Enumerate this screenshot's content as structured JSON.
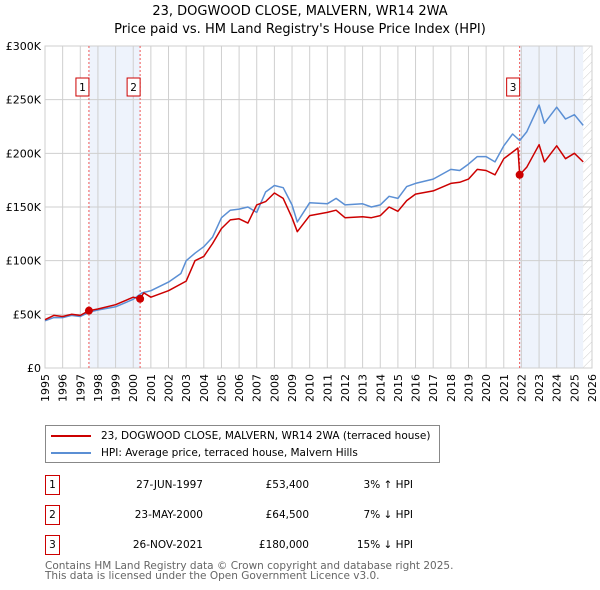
{
  "chart_data": {
    "type": "line",
    "title": "23, DOGWOOD CLOSE, MALVERN, WR14 2WA",
    "subtitle": "Price paid vs. HM Land Registry's House Price Index (HPI)",
    "xlim": [
      1995,
      2026
    ],
    "ylim": [
      0,
      300000
    ],
    "x_ticks": [
      "1995",
      "1996",
      "1997",
      "1998",
      "1999",
      "2000",
      "2001",
      "2002",
      "2003",
      "2004",
      "2005",
      "2006",
      "2007",
      "2008",
      "2009",
      "2010",
      "2011",
      "2012",
      "2013",
      "2014",
      "2015",
      "2016",
      "2017",
      "2018",
      "2019",
      "2020",
      "2021",
      "2022",
      "2023",
      "2024",
      "2025",
      "2026"
    ],
    "y_ticks": [
      {
        "v": 0,
        "label": "£0"
      },
      {
        "v": 50000,
        "label": "£50K"
      },
      {
        "v": 100000,
        "label": "£100K"
      },
      {
        "v": 150000,
        "label": "£150K"
      },
      {
        "v": 200000,
        "label": "£200K"
      },
      {
        "v": 250000,
        "label": "£250K"
      },
      {
        "v": 300000,
        "label": "£300K"
      }
    ],
    "grid": true,
    "shaded_ranges": [
      [
        1997.49,
        2000.39
      ],
      [
        2021.9,
        2025.5
      ]
    ],
    "hatched_from": 2025.5,
    "series": [
      {
        "name": "23, DOGWOOD CLOSE, MALVERN, WR14 2WA (terraced house)",
        "color": "#cc0000",
        "x": [
          1995,
          1995.5,
          1996,
          1996.5,
          1997,
          1997.49,
          1998,
          1999,
          2000,
          2000.39,
          2000.6,
          2001,
          2002,
          2003,
          2003.5,
          2004,
          2004.5,
          2005,
          2005.5,
          2006,
          2006.5,
          2007,
          2007.5,
          2008,
          2008.5,
          2009,
          2009.3,
          2010,
          2011,
          2011.5,
          2012,
          2013,
          2013.5,
          2014,
          2014.5,
          2015,
          2015.5,
          2016,
          2017,
          2018,
          2018.5,
          2019,
          2019.5,
          2020,
          2020.5,
          2021,
          2021.8,
          2021.9,
          2022.3,
          2023,
          2023.3,
          2024,
          2024.5,
          2025,
          2025.5
        ],
        "y": [
          45000,
          49000,
          48000,
          50000,
          49000,
          53400,
          55000,
          59000,
          66000,
          64500,
          70000,
          66000,
          72000,
          81000,
          100000,
          104000,
          116000,
          130000,
          138000,
          139000,
          135000,
          152000,
          155000,
          163000,
          158000,
          140000,
          127000,
          142000,
          145000,
          147000,
          140000,
          141000,
          140000,
          142000,
          150000,
          146000,
          156000,
          162000,
          165000,
          172000,
          173000,
          176000,
          185000,
          184000,
          180000,
          195000,
          205000,
          180000,
          187000,
          208000,
          192000,
          207000,
          195000,
          200000,
          192000
        ]
      },
      {
        "name": "HPI: Average price, terraced house, Malvern Hills",
        "color": "#5b8fd4",
        "x": [
          1995,
          1995.5,
          1996,
          1996.5,
          1997,
          1997.5,
          1998,
          1999,
          2000,
          2000.5,
          2001,
          2002,
          2002.7,
          2003,
          2003.5,
          2004,
          2004.5,
          2005,
          2005.5,
          2006,
          2006.5,
          2007,
          2007.5,
          2008,
          2008.5,
          2009,
          2009.3,
          2010,
          2011,
          2011.5,
          2012,
          2013,
          2013.5,
          2014,
          2014.5,
          2015,
          2015.5,
          2016,
          2017,
          2018,
          2018.5,
          2019,
          2019.5,
          2020,
          2020.5,
          2021,
          2021.5,
          2021.9,
          2022.3,
          2023,
          2023.3,
          2024,
          2024.5,
          2025,
          2025.5
        ],
        "y": [
          44000,
          47000,
          47000,
          49000,
          48000,
          52000,
          54000,
          57000,
          64000,
          70000,
          72000,
          80000,
          88000,
          100000,
          107000,
          113000,
          122000,
          140000,
          147000,
          148000,
          150000,
          145000,
          164000,
          170000,
          168000,
          152000,
          136000,
          154000,
          153000,
          158000,
          152000,
          153000,
          150000,
          152000,
          160000,
          158000,
          169000,
          172000,
          176000,
          185000,
          184000,
          190000,
          197000,
          197000,
          192000,
          207000,
          218000,
          212000,
          220000,
          245000,
          228000,
          243000,
          232000,
          236000,
          226000
        ]
      }
    ],
    "sales": [
      {
        "id": "1",
        "x": 1997.49,
        "y": 53400,
        "date": "27-JUN-1997",
        "price": "£53,400",
        "hpi": "3% ↑ HPI"
      },
      {
        "id": "2",
        "x": 2000.39,
        "y": 64500,
        "date": "23-MAY-2000",
        "price": "£64,500",
        "hpi": "7% ↓ HPI"
      },
      {
        "id": "3",
        "x": 2021.9,
        "y": 180000,
        "date": "26-NOV-2021",
        "price": "£180,000",
        "hpi": "15% ↓ HPI"
      }
    ]
  },
  "legend": {
    "property": "23, DOGWOOD CLOSE, MALVERN, WR14 2WA (terraced house)",
    "hpi": "HPI: Average price, terraced house, Malvern Hills"
  },
  "footer": {
    "line1": "Contains HM Land Registry data © Crown copyright and database right 2025.",
    "line2": "This data is licensed under the Open Government Licence v3.0."
  }
}
